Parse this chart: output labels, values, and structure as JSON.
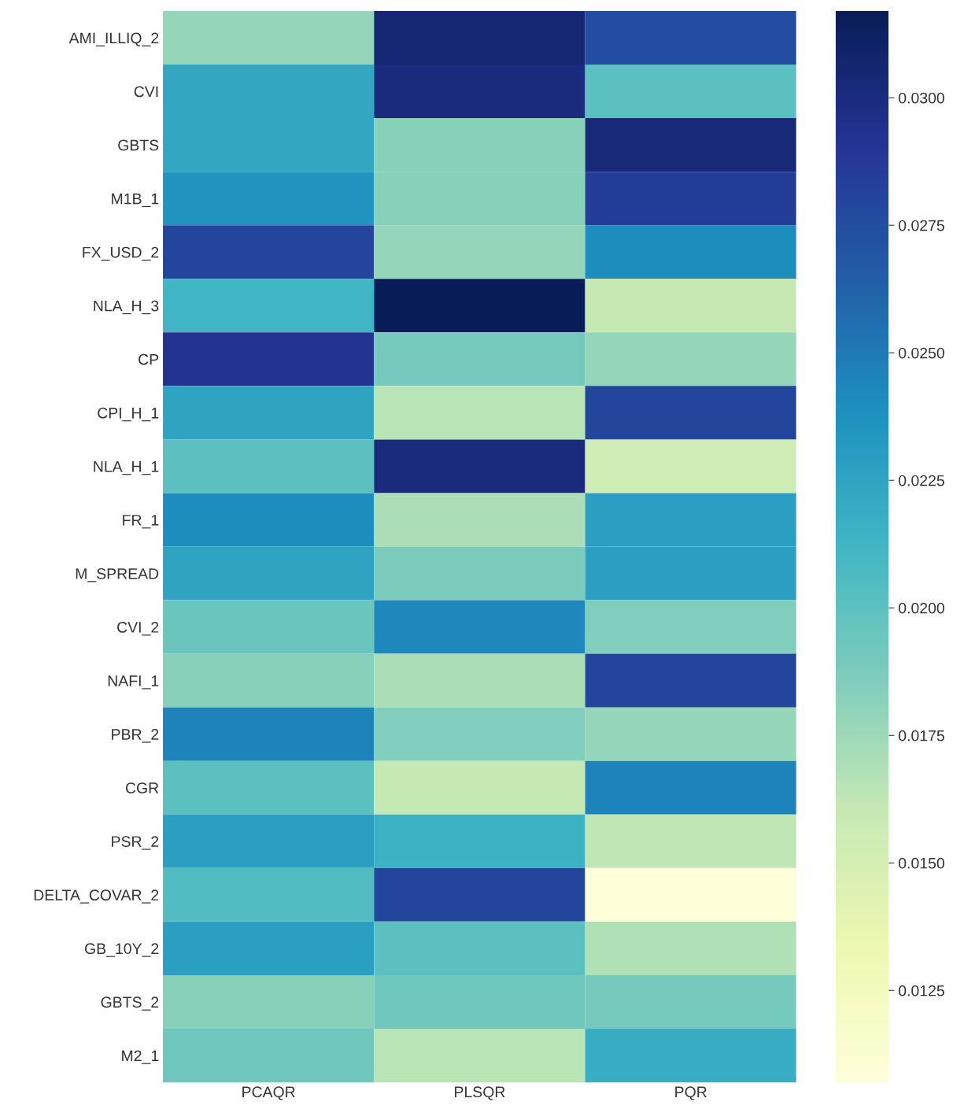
{
  "chart_data": {
    "type": "heatmap",
    "categories": [
      "PCAQR",
      "PLSQR",
      "PQR"
    ],
    "y_categories": [
      "AMI_ILLIQ_2",
      "CVI",
      "GBTS",
      "M1B_1",
      "FX_USD_2",
      "NLA_H_3",
      "CP",
      "CPI_H_1",
      "NLA_H_1",
      "FR_1",
      "M_SPREAD",
      "CVI_2",
      "NAFI_1",
      "PBR_2",
      "CGR",
      "PSR_2",
      "DELTA_COVAR_2",
      "GB_10Y_2",
      "GBTS_2",
      "M2_1"
    ],
    "cells": [
      [
        0.0178,
        0.0305,
        0.0275
      ],
      [
        0.0222,
        0.03,
        0.02
      ],
      [
        0.0222,
        0.0183,
        0.0303
      ],
      [
        0.0235,
        0.0183,
        0.0285
      ],
      [
        0.028,
        0.0178,
        0.024
      ],
      [
        0.0212,
        0.0317,
        0.016
      ],
      [
        0.0292,
        0.019,
        0.0178
      ],
      [
        0.0225,
        0.0165,
        0.028
      ],
      [
        0.02,
        0.03,
        0.0155
      ],
      [
        0.024,
        0.017,
        0.0228
      ],
      [
        0.0225,
        0.0188,
        0.0228
      ],
      [
        0.0195,
        0.0243,
        0.0185
      ],
      [
        0.0183,
        0.017,
        0.028
      ],
      [
        0.0245,
        0.0185,
        0.0178
      ],
      [
        0.02,
        0.016,
        0.0245
      ],
      [
        0.0228,
        0.0215,
        0.0162
      ],
      [
        0.0205,
        0.028,
        0.0107
      ],
      [
        0.0228,
        0.02,
        0.0168
      ],
      [
        0.0183,
        0.0193,
        0.019
      ],
      [
        0.0193,
        0.0165,
        0.0218
      ]
    ],
    "clim": [
      0.0107,
      0.0317
    ],
    "cticks": [
      {
        "value": 0.0125,
        "label": "0.0125"
      },
      {
        "value": 0.015,
        "label": "0.0150"
      },
      {
        "value": 0.0175,
        "label": "0.0175"
      },
      {
        "value": 0.02,
        "label": "0.0200"
      },
      {
        "value": 0.0225,
        "label": "0.0225"
      },
      {
        "value": 0.025,
        "label": "0.0250"
      },
      {
        "value": 0.0275,
        "label": "0.0275"
      },
      {
        "value": 0.03,
        "label": "0.0300"
      }
    ]
  }
}
